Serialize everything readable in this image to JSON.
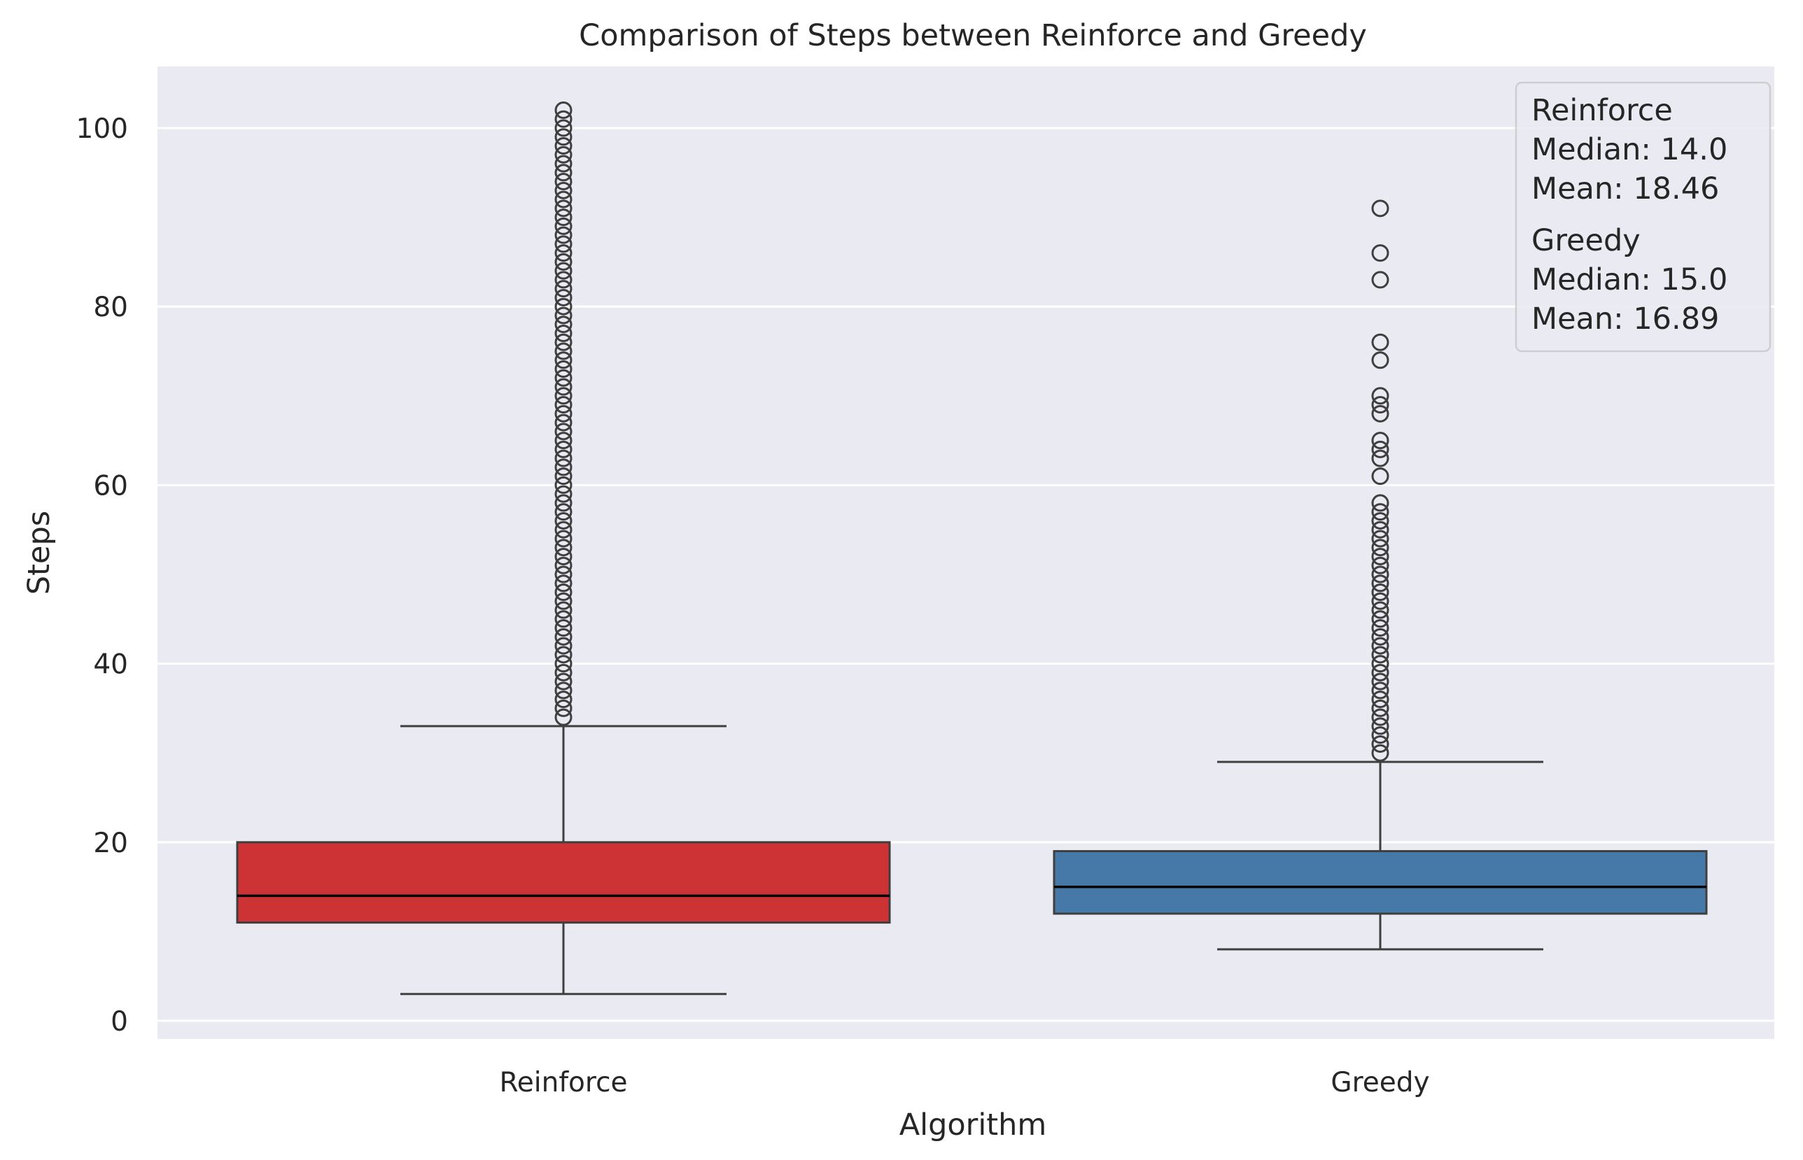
{
  "chart_data": {
    "type": "box",
    "title": "Comparison of Steps between Reinforce and Greedy",
    "xlabel": "Algorithm",
    "ylabel": "Steps",
    "ylim": [
      -2,
      107
    ],
    "yticks": [
      0,
      20,
      40,
      60,
      80,
      100
    ],
    "grid": true,
    "legend_position": "top-right",
    "categories": [
      "Reinforce",
      "Greedy"
    ],
    "series": [
      {
        "name": "Reinforce",
        "color": "#cd3234",
        "whisker_low": 3,
        "q1": 11,
        "median": 14,
        "q3": 20,
        "whisker_high": 33,
        "outliers": [
          34,
          35,
          36,
          37,
          38,
          39,
          40,
          41,
          42,
          43,
          44,
          45,
          46,
          47,
          48,
          49,
          50,
          51,
          52,
          53,
          54,
          55,
          56,
          57,
          58,
          59,
          60,
          61,
          62,
          63,
          64,
          65,
          66,
          67,
          68,
          69,
          70,
          71,
          72,
          73,
          74,
          75,
          76,
          77,
          78,
          79,
          80,
          81,
          82,
          83,
          84,
          85,
          86,
          87,
          88,
          89,
          90,
          91,
          92,
          93,
          94,
          95,
          96,
          97,
          98,
          99,
          100,
          101,
          102
        ]
      },
      {
        "name": "Greedy",
        "color": "#4679a8",
        "whisker_low": 8,
        "q1": 12,
        "median": 15,
        "q3": 19,
        "whisker_high": 29,
        "outliers": [
          30,
          31,
          32,
          33,
          34,
          35,
          36,
          37,
          38,
          39,
          40,
          41,
          42,
          43,
          44,
          45,
          46,
          47,
          48,
          49,
          50,
          51,
          52,
          53,
          54,
          55,
          56,
          57,
          58,
          61,
          63,
          64,
          65,
          68,
          69,
          70,
          74,
          76,
          83,
          86,
          91
        ]
      }
    ],
    "legend": {
      "groups": [
        {
          "name": "Reinforce",
          "median_text": "Median: 14.0",
          "mean_text": "Mean: 18.46"
        },
        {
          "name": "Greedy",
          "median_text": "Median: 15.0",
          "mean_text": "Mean: 16.89"
        }
      ]
    }
  }
}
